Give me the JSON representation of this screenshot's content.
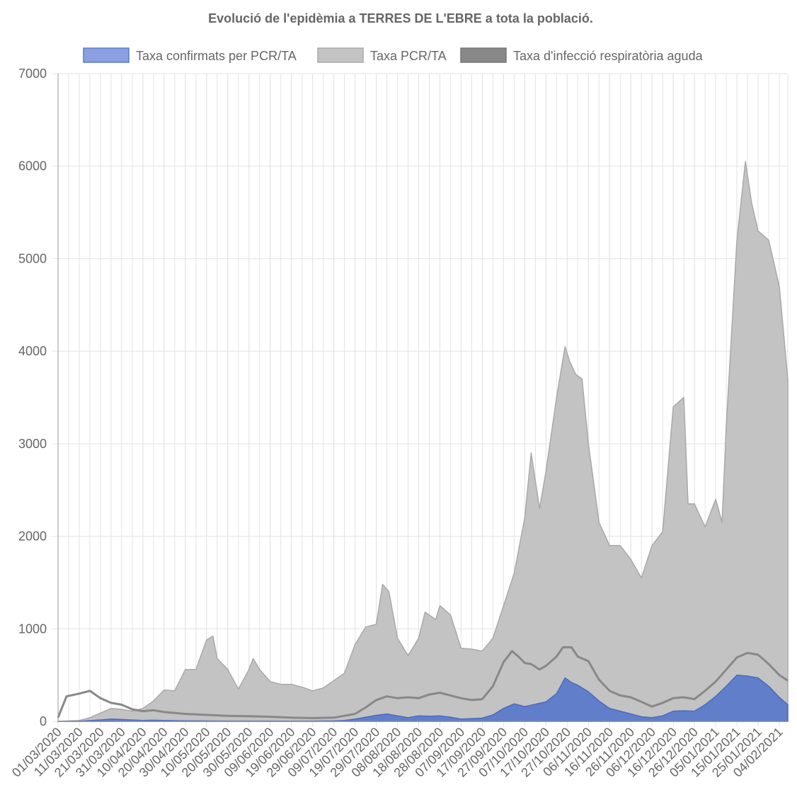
{
  "chart_data": {
    "type": "area",
    "title": "Evolució de l'epidèmia a TERRES DE L'EBRE a tota la població.",
    "xlabel": "",
    "ylabel": "",
    "ylim": [
      0,
      7000
    ],
    "yticks": [
      0,
      1000,
      2000,
      3000,
      4000,
      5000,
      6000,
      7000
    ],
    "x_range": [
      "01/03/2020",
      "08/02/2021"
    ],
    "x_tick_labels": [
      "01/03/2020",
      "11/03/2020",
      "21/03/2020",
      "31/03/2020",
      "10/04/2020",
      "20/04/2020",
      "30/04/2020",
      "10/05/2020",
      "20/05/2020",
      "30/05/2020",
      "09/06/2020",
      "19/06/2020",
      "29/06/2020",
      "09/07/2020",
      "19/07/2020",
      "29/07/2020",
      "08/08/2020",
      "18/08/2020",
      "28/08/2020",
      "07/09/2020",
      "17/09/2020",
      "27/09/2020",
      "07/10/2020",
      "17/10/2020",
      "27/10/2020",
      "06/11/2020",
      "16/11/2020",
      "26/11/2020",
      "06/12/2020",
      "16/12/2020",
      "26/12/2020",
      "05/01/2021",
      "15/01/2021",
      "25/01/2021",
      "04/02/2021"
    ],
    "grid": true,
    "legend_position": "top",
    "series": [
      {
        "name": "Taxa confirmats per PCR/TA",
        "color": "#5b7ac9",
        "fill": "#5b7ac9",
        "points": [
          [
            "01/03/2020",
            0
          ],
          [
            "11/03/2020",
            2
          ],
          [
            "21/03/2020",
            15
          ],
          [
            "26/03/2020",
            25
          ],
          [
            "31/03/2020",
            20
          ],
          [
            "10/04/2020",
            10
          ],
          [
            "15/04/2020",
            12
          ],
          [
            "20/04/2020",
            10
          ],
          [
            "30/04/2020",
            5
          ],
          [
            "20/05/2020",
            3
          ],
          [
            "19/06/2020",
            2
          ],
          [
            "29/06/2020",
            3
          ],
          [
            "09/07/2020",
            5
          ],
          [
            "14/07/2020",
            10
          ],
          [
            "19/07/2020",
            25
          ],
          [
            "24/07/2020",
            45
          ],
          [
            "29/07/2020",
            65
          ],
          [
            "03/08/2020",
            80
          ],
          [
            "08/08/2020",
            60
          ],
          [
            "13/08/2020",
            40
          ],
          [
            "18/08/2020",
            60
          ],
          [
            "23/08/2020",
            55
          ],
          [
            "28/08/2020",
            60
          ],
          [
            "02/09/2020",
            45
          ],
          [
            "07/09/2020",
            25
          ],
          [
            "12/09/2020",
            30
          ],
          [
            "17/09/2020",
            35
          ],
          [
            "22/09/2020",
            70
          ],
          [
            "27/09/2020",
            140
          ],
          [
            "02/10/2020",
            190
          ],
          [
            "07/10/2020",
            160
          ],
          [
            "12/10/2020",
            185
          ],
          [
            "17/10/2020",
            210
          ],
          [
            "22/10/2020",
            300
          ],
          [
            "26/10/2020",
            470
          ],
          [
            "29/10/2020",
            420
          ],
          [
            "01/11/2020",
            390
          ],
          [
            "06/11/2020",
            320
          ],
          [
            "11/11/2020",
            220
          ],
          [
            "16/11/2020",
            140
          ],
          [
            "21/11/2020",
            110
          ],
          [
            "26/11/2020",
            80
          ],
          [
            "01/12/2020",
            50
          ],
          [
            "06/12/2020",
            40
          ],
          [
            "11/12/2020",
            60
          ],
          [
            "16/12/2020",
            110
          ],
          [
            "21/12/2020",
            115
          ],
          [
            "26/12/2020",
            110
          ],
          [
            "31/12/2020",
            180
          ],
          [
            "05/01/2021",
            270
          ],
          [
            "10/01/2021",
            380
          ],
          [
            "15/01/2021",
            500
          ],
          [
            "20/01/2021",
            490
          ],
          [
            "25/01/2021",
            470
          ],
          [
            "30/01/2021",
            380
          ],
          [
            "04/02/2021",
            260
          ],
          [
            "08/02/2021",
            180
          ]
        ]
      },
      {
        "name": "Taxa PCR/TA",
        "color": "#a9a9a9",
        "fill": "#c3c3c3",
        "points": [
          [
            "01/03/2020",
            0
          ],
          [
            "11/03/2020",
            10
          ],
          [
            "16/03/2020",
            40
          ],
          [
            "21/03/2020",
            90
          ],
          [
            "26/03/2020",
            140
          ],
          [
            "31/03/2020",
            130
          ],
          [
            "05/04/2020",
            110
          ],
          [
            "10/04/2020",
            140
          ],
          [
            "15/04/2020",
            220
          ],
          [
            "20/04/2020",
            340
          ],
          [
            "25/04/2020",
            330
          ],
          [
            "30/04/2020",
            560
          ],
          [
            "05/05/2020",
            560
          ],
          [
            "10/05/2020",
            880
          ],
          [
            "13/05/2020",
            920
          ],
          [
            "15/05/2020",
            680
          ],
          [
            "20/05/2020",
            560
          ],
          [
            "25/05/2020",
            350
          ],
          [
            "30/05/2020",
            560
          ],
          [
            "01/06/2020",
            680
          ],
          [
            "04/06/2020",
            560
          ],
          [
            "09/06/2020",
            430
          ],
          [
            "14/06/2020",
            400
          ],
          [
            "19/06/2020",
            400
          ],
          [
            "24/06/2020",
            370
          ],
          [
            "29/06/2020",
            330
          ],
          [
            "04/07/2020",
            360
          ],
          [
            "09/07/2020",
            440
          ],
          [
            "14/07/2020",
            520
          ],
          [
            "19/07/2020",
            830
          ],
          [
            "24/07/2020",
            1020
          ],
          [
            "29/07/2020",
            1050
          ],
          [
            "01/08/2020",
            1480
          ],
          [
            "04/08/2020",
            1400
          ],
          [
            "08/08/2020",
            900
          ],
          [
            "13/08/2020",
            710
          ],
          [
            "18/08/2020",
            900
          ],
          [
            "21/08/2020",
            1180
          ],
          [
            "23/08/2020",
            1150
          ],
          [
            "26/08/2020",
            1100
          ],
          [
            "28/08/2020",
            1250
          ],
          [
            "02/09/2020",
            1150
          ],
          [
            "07/09/2020",
            790
          ],
          [
            "12/09/2020",
            780
          ],
          [
            "17/09/2020",
            760
          ],
          [
            "22/09/2020",
            900
          ],
          [
            "27/09/2020",
            1250
          ],
          [
            "02/10/2020",
            1600
          ],
          [
            "07/10/2020",
            2200
          ],
          [
            "10/10/2020",
            2900
          ],
          [
            "14/10/2020",
            2300
          ],
          [
            "17/10/2020",
            2700
          ],
          [
            "22/10/2020",
            3500
          ],
          [
            "26/10/2020",
            4050
          ],
          [
            "28/10/2020",
            3900
          ],
          [
            "31/10/2020",
            3750
          ],
          [
            "03/11/2020",
            3700
          ],
          [
            "06/11/2020",
            3000
          ],
          [
            "11/11/2020",
            2150
          ],
          [
            "16/11/2020",
            1900
          ],
          [
            "21/11/2020",
            1900
          ],
          [
            "26/11/2020",
            1750
          ],
          [
            "01/12/2020",
            1550
          ],
          [
            "06/12/2020",
            1900
          ],
          [
            "11/12/2020",
            2050
          ],
          [
            "16/12/2020",
            3400
          ],
          [
            "21/12/2020",
            3500
          ],
          [
            "23/12/2020",
            2350
          ],
          [
            "26/12/2020",
            2350
          ],
          [
            "31/12/2020",
            2100
          ],
          [
            "05/01/2021",
            2400
          ],
          [
            "08/01/2021",
            2150
          ],
          [
            "10/01/2021",
            3200
          ],
          [
            "15/01/2021",
            5200
          ],
          [
            "19/01/2021",
            6050
          ],
          [
            "22/01/2021",
            5600
          ],
          [
            "25/01/2021",
            5300
          ],
          [
            "30/01/2021",
            5200
          ],
          [
            "04/02/2021",
            4700
          ],
          [
            "08/02/2021",
            3700
          ]
        ]
      },
      {
        "name": "Taxa d'infecció respiratòria aguda",
        "color": "#888888",
        "fill": "#888888",
        "points": [
          [
            "01/03/2020",
            40
          ],
          [
            "05/03/2020",
            270
          ],
          [
            "11/03/2020",
            300
          ],
          [
            "16/03/2020",
            330
          ],
          [
            "21/03/2020",
            250
          ],
          [
            "26/03/2020",
            200
          ],
          [
            "31/03/2020",
            180
          ],
          [
            "05/04/2020",
            130
          ],
          [
            "10/04/2020",
            110
          ],
          [
            "15/04/2020",
            120
          ],
          [
            "20/04/2020",
            100
          ],
          [
            "30/04/2020",
            80
          ],
          [
            "10/05/2020",
            70
          ],
          [
            "20/05/2020",
            60
          ],
          [
            "30/05/2020",
            55
          ],
          [
            "09/06/2020",
            50
          ],
          [
            "19/06/2020",
            40
          ],
          [
            "29/06/2020",
            35
          ],
          [
            "09/07/2020",
            40
          ],
          [
            "19/07/2020",
            80
          ],
          [
            "24/07/2020",
            150
          ],
          [
            "29/07/2020",
            230
          ],
          [
            "03/08/2020",
            270
          ],
          [
            "08/08/2020",
            250
          ],
          [
            "13/08/2020",
            260
          ],
          [
            "18/08/2020",
            250
          ],
          [
            "23/08/2020",
            290
          ],
          [
            "28/08/2020",
            310
          ],
          [
            "02/09/2020",
            280
          ],
          [
            "07/09/2020",
            250
          ],
          [
            "12/09/2020",
            230
          ],
          [
            "17/09/2020",
            240
          ],
          [
            "22/09/2020",
            380
          ],
          [
            "27/09/2020",
            640
          ],
          [
            "01/10/2020",
            760
          ],
          [
            "04/10/2020",
            700
          ],
          [
            "07/10/2020",
            630
          ],
          [
            "10/10/2020",
            620
          ],
          [
            "14/10/2020",
            560
          ],
          [
            "17/10/2020",
            600
          ],
          [
            "22/10/2020",
            700
          ],
          [
            "25/10/2020",
            800
          ],
          [
            "29/10/2020",
            800
          ],
          [
            "01/11/2020",
            700
          ],
          [
            "06/11/2020",
            650
          ],
          [
            "11/11/2020",
            450
          ],
          [
            "16/11/2020",
            330
          ],
          [
            "21/11/2020",
            280
          ],
          [
            "26/11/2020",
            260
          ],
          [
            "01/12/2020",
            210
          ],
          [
            "06/12/2020",
            160
          ],
          [
            "11/12/2020",
            200
          ],
          [
            "16/12/2020",
            250
          ],
          [
            "21/12/2020",
            260
          ],
          [
            "26/12/2020",
            240
          ],
          [
            "31/12/2020",
            330
          ],
          [
            "05/01/2021",
            430
          ],
          [
            "10/01/2021",
            560
          ],
          [
            "15/01/2021",
            690
          ],
          [
            "20/01/2021",
            740
          ],
          [
            "25/01/2021",
            720
          ],
          [
            "30/01/2021",
            620
          ],
          [
            "04/02/2021",
            500
          ],
          [
            "08/02/2021",
            440
          ]
        ]
      }
    ]
  }
}
